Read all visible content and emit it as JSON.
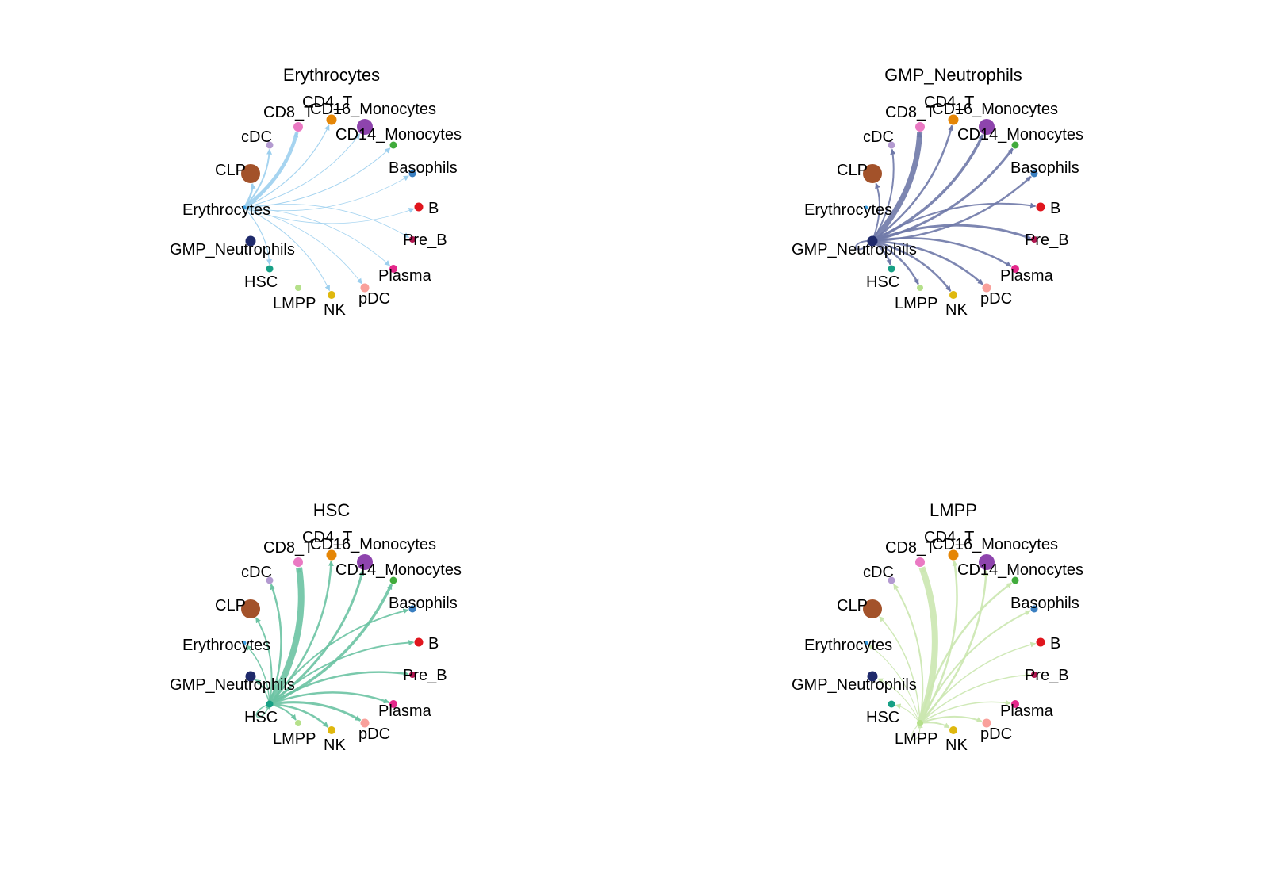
{
  "figure": {
    "panels": [
      {
        "title": "Erythrocytes",
        "source": "Erythrocytes",
        "edge_color": "#9ccfee",
        "edges": [
          {
            "target": "CD4_T",
            "weight": 1.2
          },
          {
            "target": "CD16_Monocytes",
            "weight": 1.0
          },
          {
            "target": "CD14_Monocytes",
            "weight": 1.0
          },
          {
            "target": "Basophils",
            "weight": 0.8
          },
          {
            "target": "B",
            "weight": 0.8
          },
          {
            "target": "Pre_B",
            "weight": 0.8
          },
          {
            "target": "Plasma",
            "weight": 0.8
          },
          {
            "target": "pDC",
            "weight": 0.8
          },
          {
            "target": "NK",
            "weight": 1.0
          },
          {
            "target": "HSC",
            "weight": 1.2
          },
          {
            "target": "CLP",
            "weight": 2.5
          },
          {
            "target": "cDC",
            "weight": 2.0
          },
          {
            "target": "CD8_T",
            "weight": 4.5
          }
        ]
      },
      {
        "title": "GMP_Neutrophils",
        "source": "GMP_Neutrophils",
        "edge_color": "#6f79a9",
        "edges": [
          {
            "target": "CD8_T",
            "weight": 7.0
          },
          {
            "target": "CD4_T",
            "weight": 2.5
          },
          {
            "target": "CD16_Monocytes",
            "weight": 3.5
          },
          {
            "target": "CD14_Monocytes",
            "weight": 3.0
          },
          {
            "target": "Basophils",
            "weight": 2.5
          },
          {
            "target": "B",
            "weight": 2.0
          },
          {
            "target": "Pre_B",
            "weight": 3.0
          },
          {
            "target": "Plasma",
            "weight": 2.5
          },
          {
            "target": "pDC",
            "weight": 2.5
          },
          {
            "target": "NK",
            "weight": 2.5
          },
          {
            "target": "LMPP",
            "weight": 2.5
          },
          {
            "target": "HSC",
            "weight": 2.5
          },
          {
            "target": "cDC",
            "weight": 2.0
          },
          {
            "target": "CLP",
            "weight": 2.0
          },
          {
            "target": "GMP_Neutrophils",
            "weight": 2.0
          }
        ]
      },
      {
        "title": "HSC",
        "source": "HSC",
        "edge_color": "#6cc3a3",
        "edges": [
          {
            "target": "CD8_T",
            "weight": 8.0
          },
          {
            "target": "CD4_T",
            "weight": 2.5
          },
          {
            "target": "CD16_Monocytes",
            "weight": 3.0
          },
          {
            "target": "CD14_Monocytes",
            "weight": 3.5
          },
          {
            "target": "Basophils",
            "weight": 2.0
          },
          {
            "target": "B",
            "weight": 2.0
          },
          {
            "target": "Pre_B",
            "weight": 2.5
          },
          {
            "target": "Plasma",
            "weight": 2.5
          },
          {
            "target": "pDC",
            "weight": 3.0
          },
          {
            "target": "NK",
            "weight": 2.5
          },
          {
            "target": "LMPP",
            "weight": 2.0
          },
          {
            "target": "cDC",
            "weight": 2.5
          },
          {
            "target": "CLP",
            "weight": 2.0
          },
          {
            "target": "Erythrocytes",
            "weight": 1.5
          },
          {
            "target": "GMP_Neutrophils",
            "weight": 1.5
          },
          {
            "target": "HSC",
            "weight": 1.5
          }
        ]
      },
      {
        "title": "LMPP",
        "source": "LMPP",
        "edge_color": "#cbe7b0",
        "edges": [
          {
            "target": "CD8_T",
            "weight": 8.0
          },
          {
            "target": "CD4_T",
            "weight": 2.5
          },
          {
            "target": "CD16_Monocytes",
            "weight": 2.5
          },
          {
            "target": "CD14_Monocytes",
            "weight": 2.5
          },
          {
            "target": "Basophils",
            "weight": 2.0
          },
          {
            "target": "B",
            "weight": 1.5
          },
          {
            "target": "Pre_B",
            "weight": 1.5
          },
          {
            "target": "Plasma",
            "weight": 1.5
          },
          {
            "target": "pDC",
            "weight": 2.0
          },
          {
            "target": "NK",
            "weight": 2.0
          },
          {
            "target": "cDC",
            "weight": 2.0
          },
          {
            "target": "CLP",
            "weight": 1.5
          },
          {
            "target": "Erythrocytes",
            "weight": 1.0
          },
          {
            "target": "GMP_Neutrophils",
            "weight": 1.0
          },
          {
            "target": "HSC",
            "weight": 1.0
          },
          {
            "target": "LMPP",
            "weight": 1.0
          }
        ]
      }
    ],
    "nodes": [
      {
        "id": "CD4_T",
        "label": "CD4_T",
        "color": "#e58606",
        "size": 6.5
      },
      {
        "id": "CD16_Monocytes",
        "label": "CD16_Monocytes",
        "color": "#8e44ad",
        "size": 10
      },
      {
        "id": "CD14_Monocytes",
        "label": "CD14_Monocytes",
        "color": "#41ab3c",
        "size": 4.5
      },
      {
        "id": "Basophils",
        "label": "Basophils",
        "color": "#3a7fc1",
        "size": 4.5
      },
      {
        "id": "B",
        "label": "B",
        "color": "#e0161e",
        "size": 5.5
      },
      {
        "id": "Pre_B",
        "label": "Pre_B",
        "color": "#b0154f",
        "size": 4
      },
      {
        "id": "Plasma",
        "label": "Plasma",
        "color": "#e4278a",
        "size": 5
      },
      {
        "id": "pDC",
        "label": "pDC",
        "color": "#f9a09b",
        "size": 5.5
      },
      {
        "id": "NK",
        "label": "NK",
        "color": "#dfb80e",
        "size": 5
      },
      {
        "id": "LMPP",
        "label": "LMPP",
        "color": "#b5e08a",
        "size": 4
      },
      {
        "id": "HSC",
        "label": "HSC",
        "color": "#17a085",
        "size": 4.5
      },
      {
        "id": "GMP_Neutrophils",
        "label": "GMP_Neutrophils",
        "color": "#1f2a6b",
        "size": 6.5
      },
      {
        "id": "Erythrocytes",
        "label": "Erythrocytes",
        "color": "#3b9de0",
        "size": 2.5
      },
      {
        "id": "CLP",
        "label": "CLP",
        "color": "#a3522a",
        "size": 12
      },
      {
        "id": "cDC",
        "label": "cDC",
        "color": "#b39ad0",
        "size": 4.5
      },
      {
        "id": "CD8_T",
        "label": "CD8_T",
        "color": "#ea79c3",
        "size": 6
      }
    ]
  }
}
